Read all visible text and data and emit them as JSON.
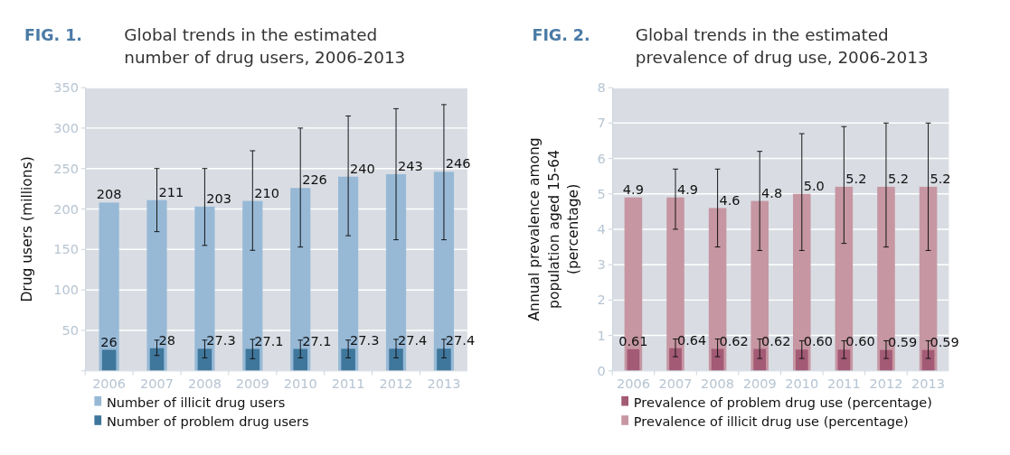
{
  "chart_data": [
    {
      "type": "bar",
      "title": "FIG. 1.",
      "subtitle": "Global trends in the estimated number of drug users, 2006-2013",
      "ylabel": "Drug users (millions)",
      "categories": [
        "2006",
        "2007",
        "2008",
        "2009",
        "2010",
        "2011",
        "2012",
        "2013"
      ],
      "series": [
        {
          "name": "Number of illicit drug users",
          "color": "#97b9d6",
          "values": [
            208,
            211,
            203,
            210,
            226,
            240,
            243,
            246
          ],
          "errors": [
            null,
            [
              172,
              250
            ],
            [
              155,
              250
            ],
            [
              149,
              272
            ],
            [
              153,
              300
            ],
            [
              167,
              315
            ],
            [
              162,
              324
            ],
            [
              162,
              329
            ]
          ]
        },
        {
          "name": "Number of problem drug users",
          "color": "#3f769c",
          "values": [
            26,
            28,
            27.3,
            27.1,
            27.1,
            27.3,
            27.4,
            27.4
          ],
          "errors": [
            null,
            [
              19,
              38
            ],
            [
              16,
              38
            ],
            [
              15,
              39
            ],
            [
              16,
              38
            ],
            [
              16,
              38
            ],
            [
              16,
              39
            ],
            [
              16,
              39
            ]
          ]
        }
      ],
      "ylim": [
        0,
        350
      ],
      "yticks": [
        {
          "value": 0,
          "label": null
        },
        50,
        100,
        150,
        200,
        250,
        300,
        350
      ],
      "grid": "y",
      "legend": "bottom",
      "data_labels": true
    },
    {
      "type": "bar",
      "title": "FIG. 2.",
      "subtitle": "Global trends in the estimated prevalence of drug use, 2006-2013",
      "ylabel": "Annual prevalence among population aged 15-64 (percentage)",
      "categories": [
        "2006",
        "2007",
        "2008",
        "2009",
        "2010",
        "2011",
        "2012",
        "2013"
      ],
      "series": [
        {
          "name": "Prevalence of problem drug use (percentage)",
          "color": "#a35a75",
          "values": [
            0.61,
            0.64,
            0.62,
            0.62,
            0.6,
            0.6,
            0.59,
            0.59
          ],
          "value_labels": [
            "0.61",
            "0.64",
            "0.62",
            "0.62",
            "0.60",
            "0.60",
            "0.59",
            "0.59"
          ],
          "errors": [
            null,
            [
              0.4,
              0.9
            ],
            [
              0.4,
              0.9
            ],
            [
              0.35,
              0.9
            ],
            [
              0.35,
              0.85
            ],
            [
              0.35,
              0.85
            ],
            [
              0.35,
              0.85
            ],
            [
              0.35,
              0.85
            ]
          ]
        },
        {
          "name": "Prevalence of illicit drug use (percentage)",
          "color": "#c696a2",
          "values": [
            4.9,
            4.9,
            4.6,
            4.8,
            5.0,
            5.2,
            5.2,
            5.2
          ],
          "value_labels": [
            "4.9",
            "4.9",
            "4.6",
            "4.8",
            "5.0",
            "5.2",
            "5.2",
            "5.2"
          ],
          "errors": [
            null,
            [
              4.0,
              5.7
            ],
            [
              3.5,
              5.7
            ],
            [
              3.4,
              6.2
            ],
            [
              3.4,
              6.7
            ],
            [
              3.6,
              6.9
            ],
            [
              3.5,
              7.0
            ],
            [
              3.4,
              7.0
            ]
          ]
        }
      ],
      "ylim": [
        0,
        8
      ],
      "yticks": [
        0,
        1,
        2,
        3,
        4,
        5,
        6,
        7,
        8
      ],
      "grid": "y",
      "legend": "bottom"
    }
  ]
}
